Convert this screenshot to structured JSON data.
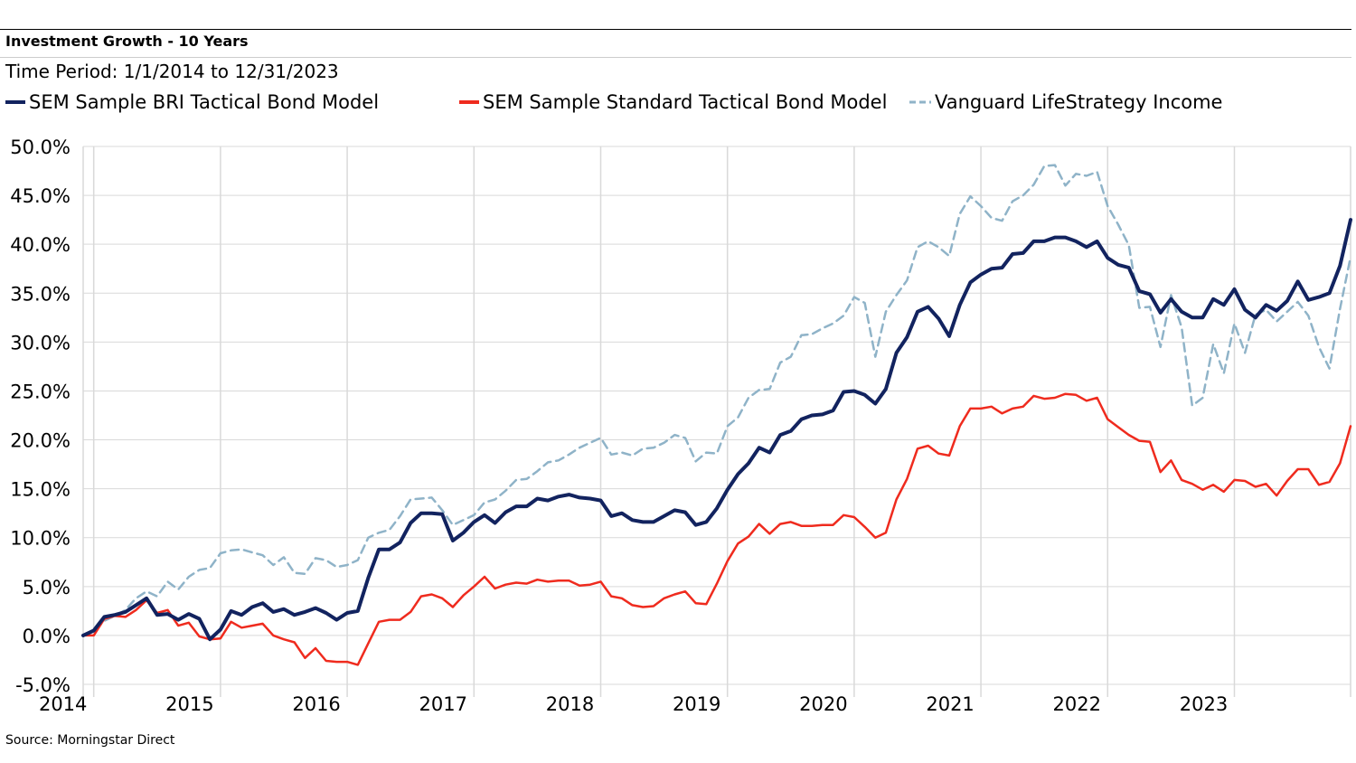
{
  "header": {
    "title": "Investment Growth - 10 Years",
    "subtitle": "Time Period: 1/1/2014 to 12/31/2023"
  },
  "footer": {
    "source": "Source: Morningstar Direct"
  },
  "chart_data": {
    "type": "line",
    "title": "Investment Growth - 10 Years",
    "subtitle": "Time Period: 1/1/2014 to 12/31/2023",
    "xlabel": "",
    "ylabel": "",
    "ylim": [
      -5,
      50
    ],
    "yticks": [
      -5,
      0,
      5,
      10,
      15,
      20,
      25,
      30,
      35,
      40,
      45,
      50
    ],
    "ytick_labels": [
      "-5.0%",
      "0.0%",
      "5.0%",
      "10.0%",
      "15.0%",
      "20.0%",
      "25.0%",
      "30.0%",
      "35.0%",
      "40.0%",
      "45.0%",
      "50.0%"
    ],
    "xticks": [
      "2014",
      "2015",
      "2016",
      "2017",
      "2018",
      "2019",
      "2020",
      "2021",
      "2022",
      "2023"
    ],
    "x_start": "2013-12",
    "x_end": "2023-12",
    "grid": true,
    "legend_position": "top",
    "series": [
      {
        "name": "SEM Sample BRI Tactical Bond Model",
        "color": "#12235f",
        "style": "solid",
        "values": [
          0.0,
          0.5,
          1.9,
          2.1,
          2.4,
          3.1,
          3.8,
          2.1,
          2.2,
          1.6,
          2.2,
          1.7,
          -0.4,
          0.6,
          2.5,
          2.1,
          2.9,
          3.3,
          2.4,
          2.7,
          2.1,
          2.4,
          2.8,
          2.3,
          1.6,
          2.3,
          2.5,
          5.9,
          8.8,
          8.8,
          9.5,
          11.5,
          12.5,
          12.5,
          12.4,
          9.7,
          10.5,
          11.6,
          12.3,
          11.5,
          12.6,
          13.2,
          13.2,
          14.0,
          13.8,
          14.2,
          14.4,
          14.1,
          14.0,
          13.8,
          12.2,
          12.5,
          11.8,
          11.6,
          11.6,
          12.2,
          12.8,
          12.6,
          11.3,
          11.6,
          13.0,
          14.9,
          16.5,
          17.6,
          19.2,
          18.7,
          20.5,
          20.9,
          22.1,
          22.5,
          22.6,
          23.0,
          24.9,
          25.0,
          24.6,
          23.7,
          25.2,
          28.9,
          30.5,
          33.1,
          33.6,
          32.4,
          30.6,
          33.8,
          36.1,
          36.9,
          37.5,
          37.6,
          39.0,
          39.1,
          40.3,
          40.3,
          40.7,
          40.7,
          40.3,
          39.7,
          40.3,
          38.6,
          37.9,
          37.6,
          35.2,
          34.9,
          33.0,
          34.4,
          33.1,
          32.5,
          32.5,
          34.4,
          33.8,
          35.4,
          33.3,
          32.5,
          33.8,
          33.2,
          34.2,
          36.2,
          34.3,
          34.6,
          35.0,
          37.8,
          42.5
        ],
        "values_note": "monthly cumulative growth %, Dec 2013 to Dec 2023"
      },
      {
        "name": "SEM Sample Standard Tactical Bond Model",
        "color": "#ef2b1e",
        "style": "solid",
        "values": [
          0.0,
          0.0,
          1.7,
          2.0,
          1.9,
          2.6,
          3.6,
          2.3,
          2.6,
          1.0,
          1.3,
          -0.1,
          -0.4,
          -0.3,
          1.4,
          0.8,
          1.0,
          1.2,
          0.0,
          -0.4,
          -0.7,
          -2.3,
          -1.3,
          -2.6,
          -2.7,
          -2.7,
          -3.0,
          -0.8,
          1.4,
          1.6,
          1.6,
          2.4,
          4.0,
          4.2,
          3.8,
          2.9,
          4.1,
          5.0,
          6.0,
          4.8,
          5.2,
          5.4,
          5.3,
          5.7,
          5.5,
          5.6,
          5.6,
          5.1,
          5.2,
          5.5,
          4.0,
          3.8,
          3.1,
          2.9,
          3.0,
          3.8,
          4.2,
          4.5,
          3.3,
          3.2,
          5.3,
          7.6,
          9.4,
          10.1,
          11.4,
          10.4,
          11.4,
          11.6,
          11.2,
          11.2,
          11.3,
          11.3,
          12.3,
          12.1,
          11.1,
          10.0,
          10.5,
          13.9,
          16.0,
          19.1,
          19.4,
          18.6,
          18.4,
          21.4,
          23.2,
          23.2,
          23.4,
          22.7,
          23.2,
          23.4,
          24.5,
          24.2,
          24.3,
          24.7,
          24.6,
          24.0,
          24.3,
          22.1,
          21.3,
          20.5,
          19.9,
          19.8,
          16.7,
          17.9,
          15.9,
          15.5,
          14.9,
          15.4,
          14.7,
          15.9,
          15.8,
          15.2,
          15.5,
          14.3,
          15.8,
          17.0,
          17.0,
          15.4,
          15.7,
          17.6,
          21.4
        ],
        "values_note": "monthly cumulative growth %, Dec 2013 to Dec 2023"
      },
      {
        "name": "Vanguard LifeStrategy Income",
        "color": "#8fb3c8",
        "style": "dashed",
        "values": [
          0.0,
          0.4,
          1.5,
          2.0,
          2.6,
          3.8,
          4.5,
          4.0,
          5.5,
          4.7,
          6.0,
          6.7,
          6.9,
          8.4,
          8.7,
          8.8,
          8.5,
          8.2,
          7.2,
          8.0,
          6.4,
          6.3,
          7.9,
          7.7,
          7.0,
          7.2,
          7.7,
          10.0,
          10.5,
          10.8,
          12.2,
          13.9,
          14.0,
          14.1,
          12.8,
          11.3,
          11.8,
          12.3,
          13.6,
          13.9,
          14.8,
          15.9,
          16.0,
          16.8,
          17.7,
          17.9,
          18.5,
          19.2,
          19.7,
          20.2,
          18.5,
          18.7,
          18.4,
          19.1,
          19.2,
          19.7,
          20.5,
          20.2,
          17.8,
          18.7,
          18.6,
          21.4,
          22.3,
          24.3,
          25.1,
          25.2,
          27.9,
          28.5,
          30.7,
          30.8,
          31.4,
          31.9,
          32.7,
          34.6,
          34.0,
          28.5,
          33.1,
          34.8,
          36.3,
          39.7,
          40.3,
          39.7,
          38.8,
          43.1,
          44.9,
          43.9,
          42.7,
          42.4,
          44.4,
          45.0,
          46.1,
          48.0,
          48.1,
          46.0,
          47.2,
          47.0,
          47.4,
          43.9,
          42.0,
          39.9,
          33.5,
          33.6,
          29.5,
          34.8,
          31.5,
          23.5,
          24.3,
          29.8,
          26.8,
          31.9,
          28.9,
          32.8,
          33.3,
          32.1,
          33.1,
          34.1,
          32.7,
          29.5,
          27.3,
          33.4,
          38.7
        ],
        "values_note": "monthly cumulative growth %, Dec 2013 to Dec 2023"
      }
    ]
  }
}
